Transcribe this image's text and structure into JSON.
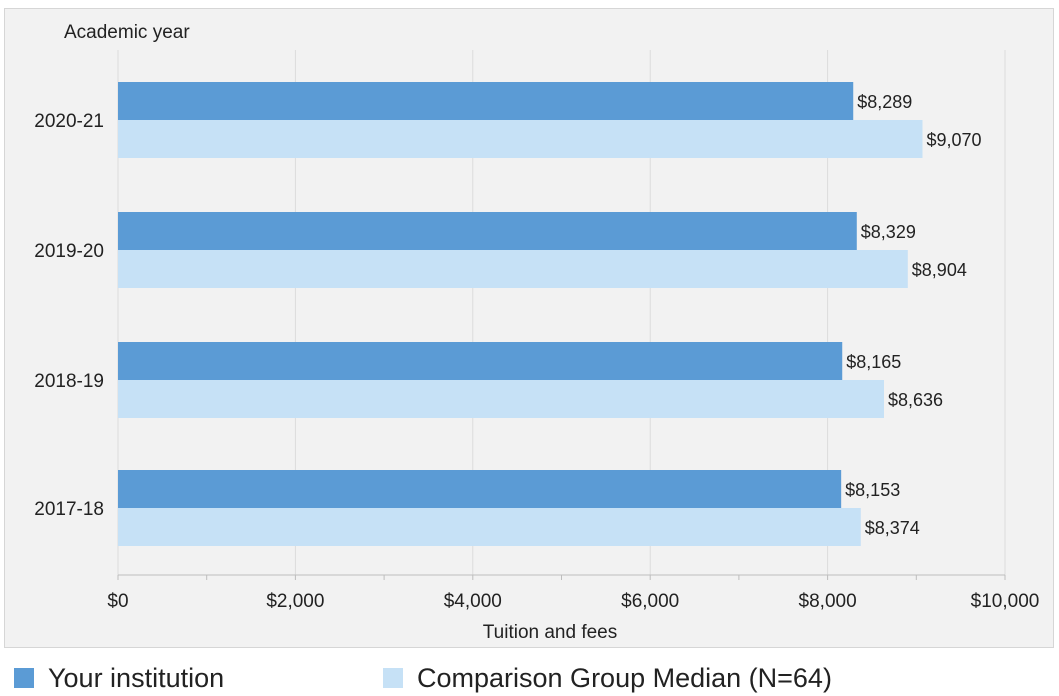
{
  "chart_data": {
    "type": "bar",
    "orientation": "horizontal",
    "categories": [
      "2020-21",
      "2019-20",
      "2018-19",
      "2017-18"
    ],
    "series": [
      {
        "name": "Your institution",
        "values": [
          8289,
          8329,
          8165,
          8153
        ],
        "color": "#5b9bd5"
      },
      {
        "name": "Comparison Group Median (N=64)",
        "values": [
          9070,
          8904,
          8636,
          8374
        ],
        "color": "#c6e1f6"
      }
    ],
    "data_labels": [
      [
        "$8,289",
        "$8,329",
        "$8,165",
        "$8,153"
      ],
      [
        "$9,070",
        "$8,904",
        "$8,636",
        "$8,374"
      ]
    ],
    "xlabel": "Tuition and fees",
    "ylabel": "Academic year",
    "xlim": [
      0,
      10000
    ],
    "x_ticks": [
      0,
      2000,
      4000,
      6000,
      8000,
      10000
    ],
    "x_tick_labels": [
      "$0",
      "$2,000",
      "$4,000",
      "$6,000",
      "$8,000",
      "$10,000"
    ],
    "grid": true,
    "legend_position": "bottom"
  }
}
